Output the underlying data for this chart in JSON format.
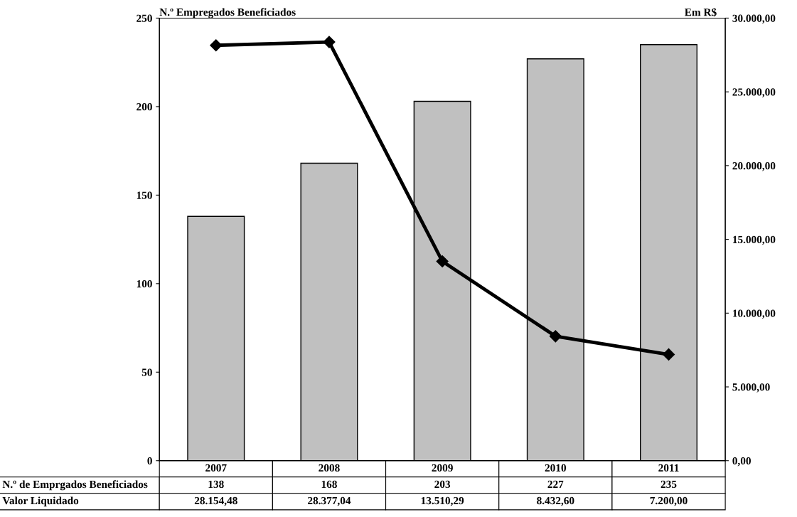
{
  "chart_data": {
    "type": "bar",
    "ylabel": "N.º Empregados Beneficiados",
    "y2label": "Em R$",
    "categories": [
      "2007",
      "2008",
      "2009",
      "2010",
      "2011"
    ],
    "series": [
      {
        "name": "N.º de Emprgados Beneficiados",
        "color": "#c0c0c0",
        "values": [
          138,
          168,
          203,
          227,
          235
        ],
        "value_labels": [
          "138",
          "168",
          "203",
          "227",
          "235"
        ]
      },
      {
        "name": "Valor Liquidado",
        "type": "line",
        "axis": "y2",
        "color": "#000000",
        "marker": "diamond",
        "line_style": "solid",
        "values": [
          28154.48,
          28377.04,
          13510.29,
          8432.6,
          7200.0
        ],
        "value_labels": [
          "28.154,48",
          "28.377,04",
          "13.510,29",
          "8.432,60",
          "7.200,00"
        ]
      }
    ],
    "ylim": [
      0,
      250
    ],
    "yticks": [
      0,
      50,
      100,
      150,
      200,
      250
    ],
    "y2lim": [
      0,
      30000
    ],
    "y2ticks": [
      {
        "value": 0,
        "label": "0,00"
      },
      {
        "value": 5000,
        "label": "5.000,00"
      },
      {
        "value": 10000,
        "label": "10.000,00"
      },
      {
        "value": 15000,
        "label": "15.000,00"
      },
      {
        "value": 20000,
        "label": "20.000,00"
      },
      {
        "value": 25000,
        "label": "25.000,00"
      },
      {
        "value": 30000,
        "label": "30.000,00"
      }
    ],
    "grid": false,
    "legend": false
  }
}
